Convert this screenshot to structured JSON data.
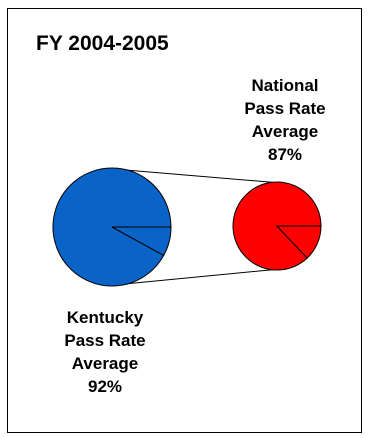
{
  "title": "FY 2004-2005",
  "chart_data": {
    "type": "pie",
    "title": "FY 2004-2005",
    "series": [
      {
        "name": "Kentucky",
        "label_lines": [
          "Kentucky",
          "Pass Rate",
          "Average",
          "92%"
        ],
        "value": 92,
        "color": "#0a64c8"
      },
      {
        "name": "National",
        "label_lines": [
          "National",
          "Pass Rate",
          "Average",
          "87%"
        ],
        "value": 87,
        "color": "#ff0000"
      }
    ]
  }
}
